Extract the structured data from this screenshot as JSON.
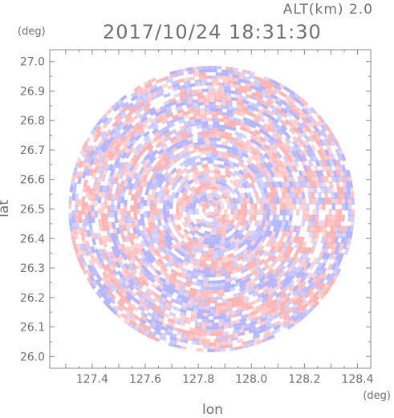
{
  "alt_label": "ALT(km) 2.0",
  "timestamp": "2017/10/24 18:31:30",
  "y_unit": "(deg)",
  "x_unit": "(deg)",
  "chart_data": {
    "type": "heatmap",
    "title": "2017/10/24 18:31:30",
    "xlabel": "lon",
    "ylabel": "lat",
    "xlim": [
      127.24,
      128.45
    ],
    "ylim": [
      25.96,
      27.04
    ],
    "x_ticks": [
      "127.4",
      "127.6",
      "127.8",
      "128.0",
      "128.2",
      "128.4"
    ],
    "y_ticks": [
      "26.0",
      "26.1",
      "26.2",
      "26.3",
      "26.4",
      "26.5",
      "26.6",
      "26.7",
      "26.8",
      "26.9",
      "27.0"
    ],
    "domain": {
      "shape": "circle",
      "center_lon": 127.85,
      "center_lat": 26.5,
      "radius_deg": 0.54
    },
    "colors": {
      "positive": "#ffb4b4",
      "negative": "#b4b4ff",
      "neutral": "#ffffff",
      "axes": "#8a8a8a"
    },
    "grid": false
  }
}
